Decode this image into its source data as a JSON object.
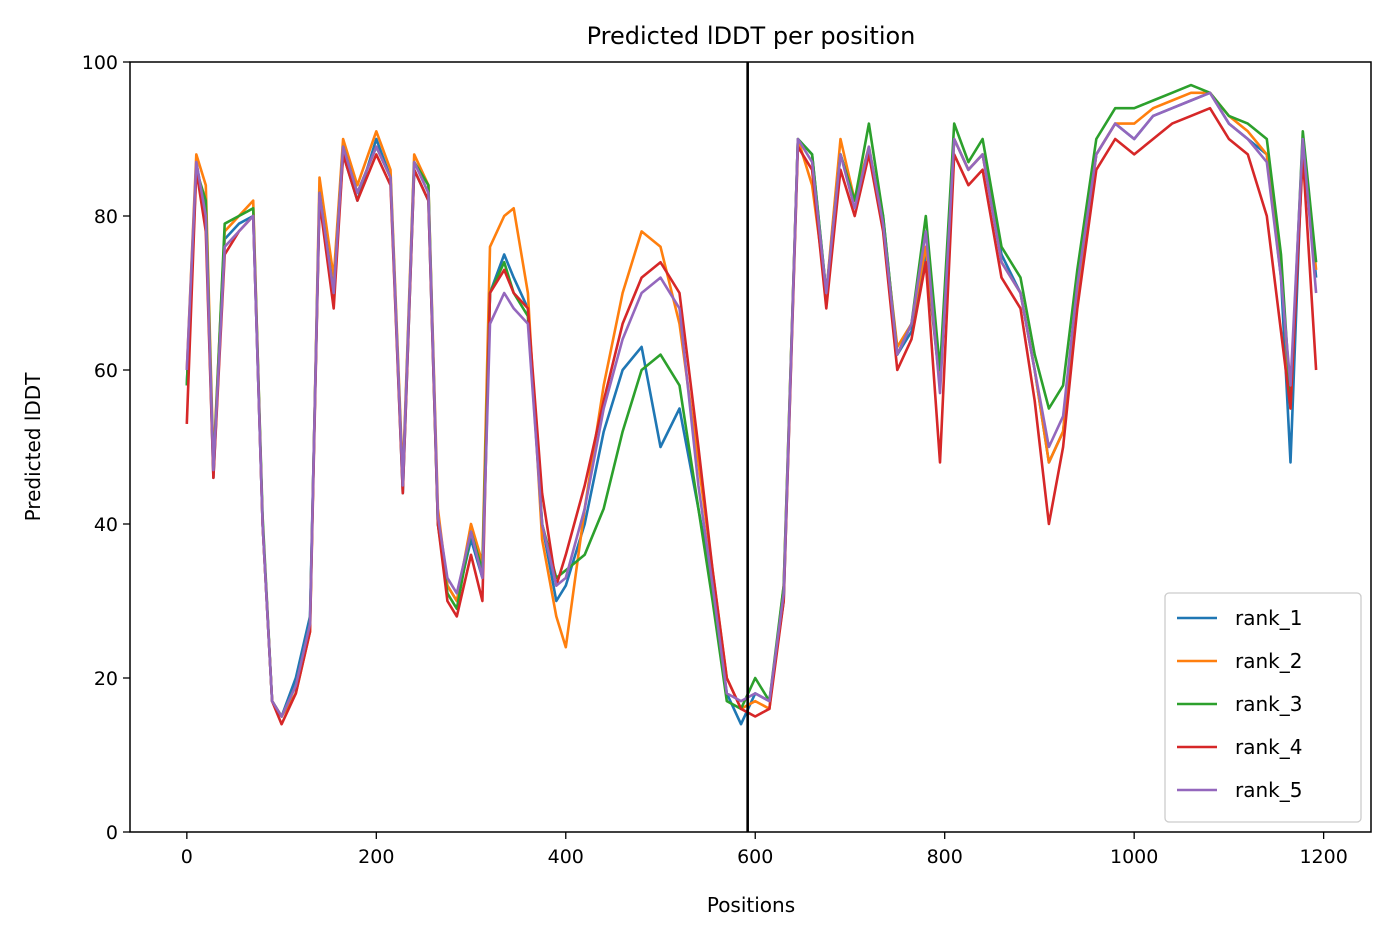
{
  "chart_data": {
    "type": "line",
    "title": "Predicted lDDT per position",
    "xlabel": "Positions",
    "ylabel": "Predicted lDDT",
    "xlim": [
      -60,
      1250
    ],
    "ylim": [
      0,
      100
    ],
    "xticks": [
      0,
      200,
      400,
      600,
      800,
      1000,
      1200
    ],
    "yticks": [
      0,
      20,
      40,
      60,
      80,
      100
    ],
    "grid": false,
    "legend_position": "lower-right",
    "vline_x": 592,
    "x": [
      0,
      10,
      20,
      28,
      40,
      55,
      70,
      80,
      90,
      100,
      115,
      130,
      140,
      155,
      165,
      180,
      200,
      215,
      228,
      240,
      255,
      265,
      275,
      285,
      300,
      312,
      320,
      335,
      345,
      360,
      375,
      390,
      400,
      420,
      440,
      460,
      480,
      500,
      520,
      540,
      555,
      570,
      585,
      600,
      615,
      630,
      645,
      660,
      675,
      690,
      705,
      720,
      735,
      750,
      765,
      780,
      795,
      810,
      825,
      840,
      860,
      880,
      895,
      910,
      925,
      940,
      960,
      980,
      1000,
      1020,
      1040,
      1060,
      1080,
      1100,
      1120,
      1140,
      1155,
      1165,
      1178,
      1192
    ],
    "series": [
      {
        "name": "rank_1",
        "color": "#1f77b4",
        "values": [
          58,
          87,
          80,
          46,
          77,
          79,
          80,
          40,
          17,
          15,
          20,
          28,
          82,
          70,
          88,
          82,
          90,
          85,
          44,
          86,
          82,
          40,
          32,
          30,
          38,
          33,
          70,
          75,
          72,
          68,
          40,
          30,
          32,
          40,
          52,
          60,
          63,
          50,
          55,
          42,
          32,
          18,
          14,
          18,
          17,
          30,
          90,
          88,
          70,
          88,
          82,
          88,
          80,
          62,
          65,
          75,
          58,
          90,
          86,
          88,
          75,
          70,
          60,
          48,
          52,
          70,
          88,
          92,
          90,
          93,
          94,
          95,
          96,
          92,
          90,
          88,
          72,
          48,
          90,
          72
        ]
      },
      {
        "name": "rank_2",
        "color": "#ff7f0e",
        "values": [
          60,
          88,
          84,
          48,
          78,
          80,
          82,
          40,
          17,
          15,
          18,
          26,
          85,
          72,
          90,
          84,
          91,
          86,
          46,
          88,
          84,
          42,
          32,
          30,
          40,
          35,
          76,
          80,
          81,
          70,
          38,
          28,
          24,
          42,
          58,
          70,
          78,
          76,
          66,
          48,
          34,
          20,
          16,
          17,
          16,
          32,
          90,
          84,
          70,
          90,
          82,
          89,
          79,
          63,
          66,
          76,
          58,
          90,
          86,
          88,
          74,
          70,
          60,
          48,
          52,
          70,
          88,
          92,
          92,
          94,
          95,
          96,
          96,
          93,
          91,
          88,
          74,
          55,
          90,
          73
        ]
      },
      {
        "name": "rank_3",
        "color": "#2ca02c",
        "values": [
          58,
          86,
          82,
          47,
          79,
          80,
          81,
          41,
          17,
          15,
          19,
          27,
          83,
          70,
          89,
          83,
          89,
          85,
          45,
          87,
          84,
          40,
          31,
          29,
          39,
          34,
          70,
          74,
          70,
          67,
          40,
          33,
          34,
          36,
          42,
          52,
          60,
          62,
          58,
          42,
          30,
          17,
          16,
          20,
          17,
          32,
          90,
          88,
          70,
          88,
          82,
          92,
          80,
          62,
          66,
          80,
          60,
          92,
          87,
          90,
          76,
          72,
          62,
          55,
          58,
          73,
          90,
          94,
          94,
          95,
          96,
          97,
          96,
          93,
          92,
          90,
          75,
          56,
          91,
          74
        ]
      },
      {
        "name": "rank_4",
        "color": "#d62728",
        "values": [
          53,
          86,
          78,
          46,
          75,
          78,
          80,
          40,
          17,
          14,
          18,
          26,
          82,
          68,
          88,
          82,
          88,
          84,
          44,
          86,
          82,
          40,
          30,
          28,
          36,
          30,
          70,
          73,
          70,
          68,
          44,
          32,
          36,
          45,
          56,
          66,
          72,
          74,
          70,
          50,
          34,
          20,
          16,
          15,
          16,
          30,
          89,
          86,
          68,
          86,
          80,
          88,
          78,
          60,
          64,
          74,
          48,
          88,
          84,
          86,
          72,
          68,
          56,
          40,
          50,
          68,
          86,
          90,
          88,
          90,
          92,
          93,
          94,
          90,
          88,
          80,
          65,
          55,
          88,
          60
        ]
      },
      {
        "name": "rank_5",
        "color": "#9467bd",
        "values": [
          60,
          87,
          80,
          47,
          76,
          78,
          80,
          40,
          17,
          15,
          19,
          27,
          83,
          70,
          89,
          83,
          89,
          85,
          45,
          87,
          83,
          41,
          33,
          31,
          39,
          33,
          66,
          70,
          68,
          66,
          40,
          32,
          33,
          42,
          55,
          64,
          70,
          72,
          68,
          45,
          32,
          18,
          17,
          18,
          17,
          31,
          90,
          87,
          70,
          88,
          81,
          89,
          79,
          62,
          66,
          78,
          57,
          90,
          86,
          88,
          74,
          70,
          60,
          50,
          54,
          71,
          88,
          92,
          90,
          93,
          94,
          95,
          96,
          92,
          90,
          87,
          72,
          58,
          90,
          70
        ]
      }
    ]
  }
}
